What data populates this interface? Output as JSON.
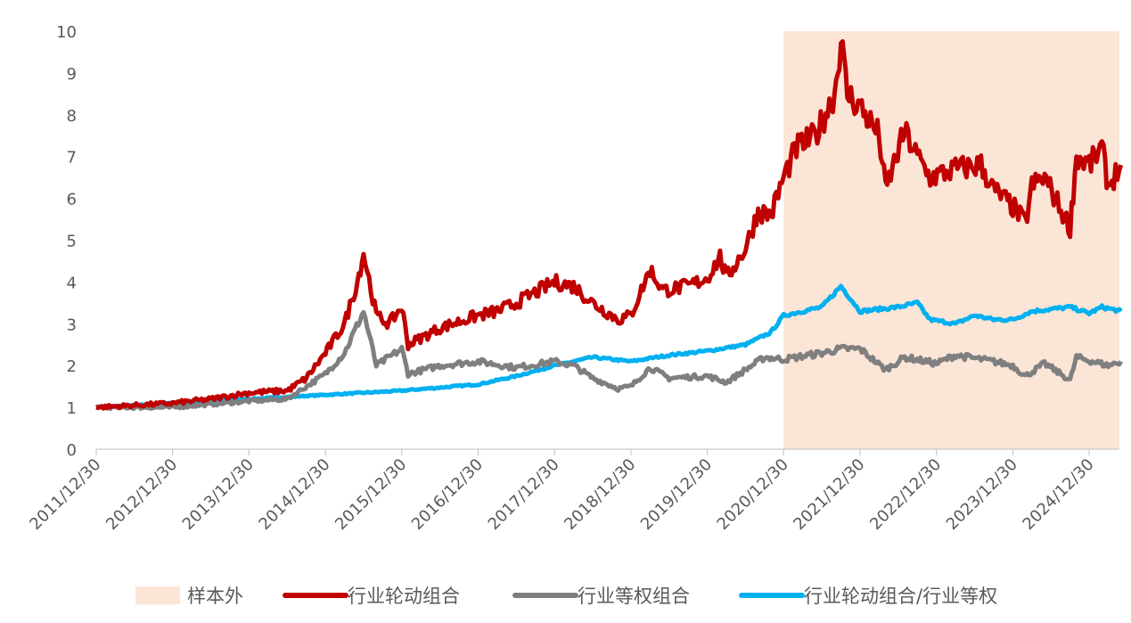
{
  "chart_data": {
    "type": "line",
    "title": "",
    "xlabel": "",
    "ylabel": "",
    "ylim": [
      0,
      10
    ],
    "yticks": [
      "0",
      "1",
      "2",
      "3",
      "4",
      "5",
      "6",
      "7",
      "8",
      "9",
      "10"
    ],
    "xticks": [
      "2011/12/30",
      "2012/12/30",
      "2013/12/30",
      "2014/12/30",
      "2015/12/30",
      "2016/12/30",
      "2017/12/30",
      "2018/12/30",
      "2019/12/30",
      "2020/12/30",
      "2021/12/30",
      "2022/12/30",
      "2023/12/30",
      "2024/12/30"
    ],
    "grid": false,
    "legend_position": "bottom",
    "shaded_region": {
      "name": "样本外",
      "start": "2020-12",
      "end": "2025-05",
      "color": "#fbe5d6"
    },
    "series": [
      {
        "name": "行业轮动组合",
        "color": "#c00000",
        "points": [
          [
            "2011-12",
            1.0
          ],
          [
            "2012-06",
            1.05
          ],
          [
            "2012-12",
            1.1
          ],
          [
            "2013-06",
            1.2
          ],
          [
            "2013-12",
            1.35
          ],
          [
            "2014-06",
            1.4
          ],
          [
            "2014-09",
            1.7
          ],
          [
            "2014-12",
            2.3
          ],
          [
            "2015-03",
            3.0
          ],
          [
            "2015-05",
            4.0
          ],
          [
            "2015-06",
            4.7
          ],
          [
            "2015-08",
            3.2
          ],
          [
            "2015-10",
            3.0
          ],
          [
            "2015-12",
            3.4
          ],
          [
            "2016-01",
            2.5
          ],
          [
            "2016-06",
            2.9
          ],
          [
            "2016-12",
            3.2
          ],
          [
            "2017-03",
            3.3
          ],
          [
            "2017-06",
            3.5
          ],
          [
            "2017-12",
            4.0
          ],
          [
            "2018-03",
            3.9
          ],
          [
            "2018-06",
            3.5
          ],
          [
            "2018-10",
            3.1
          ],
          [
            "2018-12",
            3.2
          ],
          [
            "2019-03",
            4.3
          ],
          [
            "2019-05",
            3.8
          ],
          [
            "2019-09",
            3.9
          ],
          [
            "2019-12",
            4.1
          ],
          [
            "2020-02",
            4.6
          ],
          [
            "2020-03",
            4.1
          ],
          [
            "2020-06",
            4.8
          ],
          [
            "2020-08",
            5.7
          ],
          [
            "2020-10",
            5.6
          ],
          [
            "2020-12",
            6.5
          ],
          [
            "2021-02",
            7.2
          ],
          [
            "2021-05",
            7.5
          ],
          [
            "2021-08",
            8.5
          ],
          [
            "2021-09",
            9.8
          ],
          [
            "2021-10",
            8.5
          ],
          [
            "2021-12",
            8.2
          ],
          [
            "2022-03",
            7.5
          ],
          [
            "2022-04",
            6.2
          ],
          [
            "2022-07",
            7.6
          ],
          [
            "2022-09",
            7.0
          ],
          [
            "2022-11",
            6.5
          ],
          [
            "2023-03",
            6.7
          ],
          [
            "2023-07",
            6.8
          ],
          [
            "2023-09",
            6.2
          ],
          [
            "2023-12",
            5.8
          ],
          [
            "2024-02",
            5.4
          ],
          [
            "2024-03",
            6.3
          ],
          [
            "2024-05",
            6.5
          ],
          [
            "2024-07",
            5.9
          ],
          [
            "2024-09",
            5.3
          ],
          [
            "2024-10",
            7.0
          ],
          [
            "2024-12",
            6.8
          ],
          [
            "2025-02",
            7.2
          ],
          [
            "2025-03",
            6.3
          ],
          [
            "2025-05",
            6.8
          ]
        ]
      },
      {
        "name": "行业等权组合",
        "color": "#7f7f7f",
        "points": [
          [
            "2011-12",
            1.0
          ],
          [
            "2012-12",
            1.0
          ],
          [
            "2013-12",
            1.15
          ],
          [
            "2014-06",
            1.2
          ],
          [
            "2014-12",
            1.8
          ],
          [
            "2015-03",
            2.3
          ],
          [
            "2015-06",
            3.3
          ],
          [
            "2015-08",
            2.0
          ],
          [
            "2015-12",
            2.4
          ],
          [
            "2016-01",
            1.8
          ],
          [
            "2016-06",
            2.0
          ],
          [
            "2016-12",
            2.1
          ],
          [
            "2017-06",
            1.95
          ],
          [
            "2017-12",
            2.1
          ],
          [
            "2018-03",
            2.0
          ],
          [
            "2018-06",
            1.7
          ],
          [
            "2018-10",
            1.45
          ],
          [
            "2018-12",
            1.5
          ],
          [
            "2019-03",
            1.95
          ],
          [
            "2019-06",
            1.7
          ],
          [
            "2019-12",
            1.75
          ],
          [
            "2020-03",
            1.6
          ],
          [
            "2020-06",
            1.9
          ],
          [
            "2020-09",
            2.2
          ],
          [
            "2020-12",
            2.15
          ],
          [
            "2021-06",
            2.3
          ],
          [
            "2021-09",
            2.4
          ],
          [
            "2021-12",
            2.4
          ],
          [
            "2022-04",
            1.9
          ],
          [
            "2022-07",
            2.2
          ],
          [
            "2022-12",
            2.05
          ],
          [
            "2023-03",
            2.25
          ],
          [
            "2023-09",
            2.1
          ],
          [
            "2023-12",
            2.0
          ],
          [
            "2024-02",
            1.75
          ],
          [
            "2024-05",
            2.05
          ],
          [
            "2024-09",
            1.65
          ],
          [
            "2024-10",
            2.2
          ],
          [
            "2025-03",
            2.0
          ],
          [
            "2025-05",
            2.1
          ]
        ]
      },
      {
        "name": "行业轮动组合/行业等权",
        "color": "#00b0f0",
        "points": [
          [
            "2011-12",
            1.0
          ],
          [
            "2012-12",
            1.1
          ],
          [
            "2013-12",
            1.2
          ],
          [
            "2014-12",
            1.3
          ],
          [
            "2015-12",
            1.4
          ],
          [
            "2016-12",
            1.55
          ],
          [
            "2017-06",
            1.75
          ],
          [
            "2017-12",
            2.0
          ],
          [
            "2018-06",
            2.2
          ],
          [
            "2018-12",
            2.1
          ],
          [
            "2019-06",
            2.25
          ],
          [
            "2019-12",
            2.35
          ],
          [
            "2020-06",
            2.5
          ],
          [
            "2020-10",
            2.8
          ],
          [
            "2020-12",
            3.2
          ],
          [
            "2021-06",
            3.4
          ],
          [
            "2021-09",
            3.9
          ],
          [
            "2021-12",
            3.3
          ],
          [
            "2022-06",
            3.4
          ],
          [
            "2022-09",
            3.5
          ],
          [
            "2022-11",
            3.1
          ],
          [
            "2023-03",
            3.0
          ],
          [
            "2023-06",
            3.2
          ],
          [
            "2023-09",
            3.1
          ],
          [
            "2023-12",
            3.1
          ],
          [
            "2024-03",
            3.3
          ],
          [
            "2024-09",
            3.4
          ],
          [
            "2024-12",
            3.25
          ],
          [
            "2025-02",
            3.4
          ],
          [
            "2025-05",
            3.3
          ]
        ]
      }
    ]
  }
}
